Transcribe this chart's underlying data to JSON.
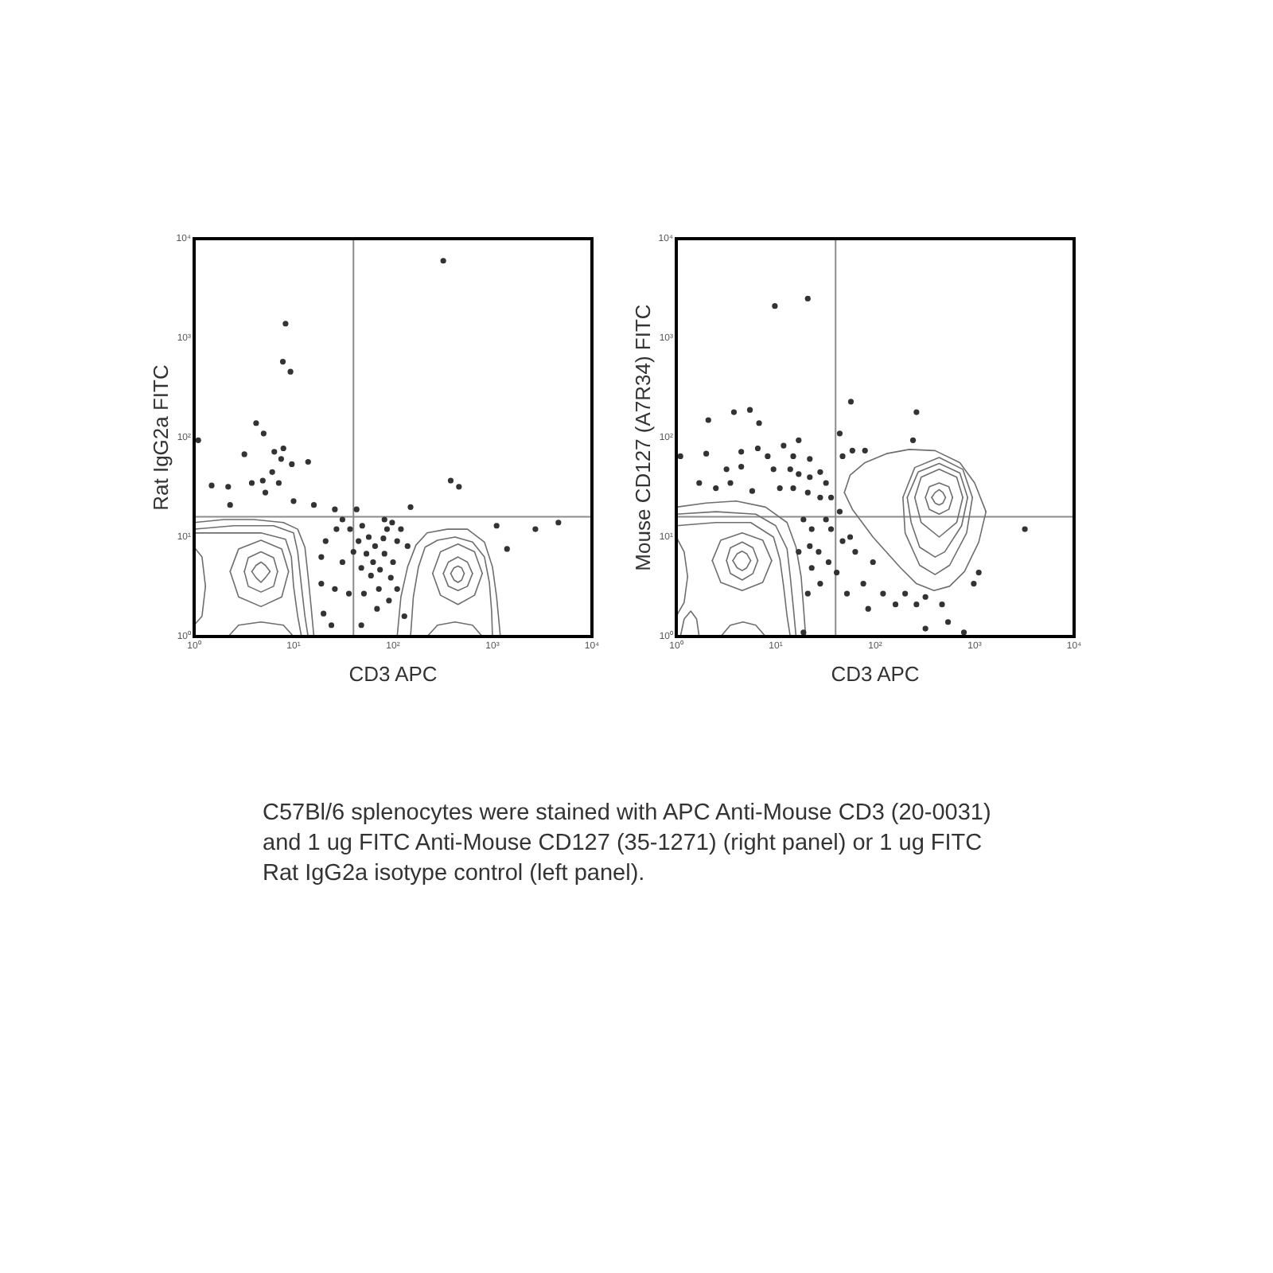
{
  "chart_data": [
    {
      "type": "scatter",
      "xlabel": "CD3 APC",
      "ylabel": "Rat IgG2a FITC",
      "log": "xy",
      "xlim": [
        1,
        10000
      ],
      "ylim": [
        1,
        10000
      ],
      "xticks": [
        {
          "value": 1,
          "label": "10⁰"
        },
        {
          "value": 10,
          "label": "10¹"
        },
        {
          "value": 100,
          "label": "10²"
        },
        {
          "value": 1000,
          "label": "10³"
        },
        {
          "value": 10000,
          "label": "10⁴"
        }
      ],
      "yticks": [
        {
          "value": 1,
          "label": "10⁰"
        },
        {
          "value": 10,
          "label": "10¹"
        },
        {
          "value": 100,
          "label": "10²"
        },
        {
          "value": 1000,
          "label": "10³"
        },
        {
          "value": 10000,
          "label": "10⁴"
        }
      ],
      "marker": "circle",
      "ref_lines": [
        {
          "axis": "x",
          "value": 40,
          "color": "#8c8c8c"
        },
        {
          "axis": "y",
          "value": 16,
          "color": "#8c8c8c"
        }
      ],
      "series": [
        {
          "type": "scatter",
          "color": "#333333",
          "x": [
            320,
            8.3,
            7.8,
            9.3,
            4.2,
            5.0,
            1.1,
            3.2,
            6.4,
            7.9,
            7.5,
            6.1,
            14,
            9.6,
            1.5,
            2.2,
            3.8,
            4.9,
            7.1,
            10,
            2.3,
            5.2,
            16,
            380,
            460,
            150,
            2700,
            4600,
            1100,
            1400,
            19,
            21,
            19,
            20,
            26,
            27,
            31,
            36,
            37,
            40,
            45,
            48,
            49,
            51,
            54,
            57,
            60,
            63,
            66,
            69,
            72,
            74,
            80,
            82,
            87,
            91,
            95,
            100,
            110,
            110,
            120,
            130,
            140,
            24,
            48,
            31,
            82,
            98,
            43,
            26
          ],
          "values": [
            6000,
            1400,
            580,
            460,
            140,
            110,
            94,
            68,
            72,
            78,
            61,
            45,
            57,
            54,
            33,
            32,
            35,
            37,
            35,
            23,
            21,
            28,
            21,
            37,
            32,
            20,
            12,
            14,
            13,
            7.6,
            6.3,
            9.1,
            3.4,
            1.7,
            3.0,
            12,
            5.6,
            2.7,
            12,
            7.1,
            9.1,
            4.9,
            13,
            2.7,
            6.8,
            10,
            4.1,
            5.6,
            8.1,
            1.9,
            3.0,
            4.7,
            9.7,
            6.8,
            12,
            2.3,
            3.9,
            5.6,
            9.1,
            3.0,
            12,
            1.6,
            8.1,
            1.3,
            1.3,
            15,
            15,
            14,
            19,
            19
          ]
        },
        {
          "type": "line",
          "color": "#6e6e6e",
          "marker": "none",
          "x": [
            1,
            2.0,
            4.0,
            7.9,
            11,
            13,
            14,
            15,
            16
          ],
          "values": [
            14,
            15,
            15,
            14,
            12,
            7.9,
            4.0,
            2.0,
            1
          ]
        },
        {
          "type": "line",
          "color": "#6e6e6e",
          "marker": "none",
          "x": [
            1,
            2.5,
            6.3,
            10,
            11,
            12,
            13,
            14
          ],
          "values": [
            12,
            13,
            13,
            11,
            7.1,
            3.2,
            1.6,
            1
          ]
        },
        {
          "type": "line",
          "color": "#6e6e6e",
          "marker": "none",
          "x": [
            1,
            2.0,
            4.7,
            8.3,
            9.5,
            10,
            11,
            12
          ],
          "values": [
            11,
            11,
            11,
            9.5,
            6.3,
            3.2,
            1.6,
            1
          ]
        },
        {
          "type": "line",
          "color": "#6e6e6e",
          "marker": "none",
          "x": [
            2.3,
            2.8,
            4.7,
            7.6,
            8.9
          ],
          "values": [
            4.5,
            7.6,
            9.3,
            7.6,
            4.5
          ]
        },
        {
          "type": "line",
          "color": "#6e6e6e",
          "marker": "none",
          "x": [
            2.3,
            2.8,
            4.7,
            7.6,
            8.9
          ],
          "values": [
            4.5,
            2.5,
            2.0,
            2.5,
            4.5
          ]
        },
        {
          "type": "line",
          "color": "#6e6e6e",
          "marker": "none",
          "x": [
            3.2,
            3.5,
            4.7,
            6.3,
            6.9
          ],
          "values": [
            4.5,
            6.2,
            7.1,
            6.2,
            4.5
          ]
        },
        {
          "type": "line",
          "color": "#6e6e6e",
          "marker": "none",
          "x": [
            3.2,
            3.5,
            4.7,
            6.3,
            6.9
          ],
          "values": [
            4.5,
            3.2,
            2.8,
            3.2,
            4.5
          ]
        },
        {
          "type": "line",
          "color": "#6e6e6e",
          "marker": "none",
          "x": [
            3.8,
            4.2,
            4.7,
            5.2,
            5.8
          ],
          "values": [
            4.5,
            5.2,
            5.6,
            5.2,
            4.5
          ]
        },
        {
          "type": "line",
          "color": "#6e6e6e",
          "marker": "none",
          "x": [
            3.8,
            4.2,
            4.7,
            5.2,
            5.8
          ],
          "values": [
            4.5,
            3.9,
            3.5,
            3.9,
            4.5
          ]
        },
        {
          "type": "line",
          "color": "#6e6e6e",
          "marker": "none",
          "x": [
            2.2,
            2.8,
            4.7,
            7.9,
            10
          ],
          "values": [
            1,
            1.3,
            1.4,
            1.3,
            1
          ]
        },
        {
          "type": "line",
          "color": "#6e6e6e",
          "marker": "none",
          "x": [
            1,
            1.2,
            1.3
          ],
          "values": [
            7.9,
            6.3,
            3.2
          ]
        },
        {
          "type": "line",
          "color": "#6e6e6e",
          "marker": "none",
          "x": [
            1,
            1.2,
            1.3
          ],
          "values": [
            1.3,
            1.6,
            3.2
          ]
        },
        {
          "type": "line",
          "color": "#6e6e6e",
          "marker": "none",
          "x": [
            110,
            120,
            140,
            170,
            220,
            350,
            560,
            830,
            1000,
            1100,
            1200
          ],
          "values": [
            1,
            2.5,
            5.0,
            8.3,
            11,
            12,
            12,
            8.9,
            5.0,
            2.5,
            1
          ]
        },
        {
          "type": "line",
          "color": "#6e6e6e",
          "marker": "none",
          "x": [
            150,
            160,
            180,
            210,
            280,
            420,
            630,
            830,
            930,
            980,
            1000
          ],
          "values": [
            1,
            2.5,
            5.0,
            7.9,
            9.3,
            10,
            8.9,
            6.3,
            3.5,
            1.8,
            1
          ]
        },
        {
          "type": "line",
          "color": "#6e6e6e",
          "marker": "none",
          "x": [
            250,
            300,
            450,
            660,
            790
          ],
          "values": [
            4.3,
            7.1,
            8.5,
            7.1,
            4.3
          ]
        },
        {
          "type": "line",
          "color": "#6e6e6e",
          "marker": "none",
          "x": [
            250,
            300,
            450,
            660,
            790
          ],
          "values": [
            4.3,
            2.6,
            2.1,
            2.6,
            4.3
          ]
        },
        {
          "type": "line",
          "color": "#6e6e6e",
          "marker": "none",
          "x": [
            320,
            360,
            450,
            560,
            630
          ],
          "values": [
            4.3,
            5.6,
            6.3,
            5.6,
            4.3
          ]
        },
        {
          "type": "line",
          "color": "#6e6e6e",
          "marker": "none",
          "x": [
            320,
            360,
            450,
            560,
            630
          ],
          "values": [
            4.3,
            3.2,
            2.9,
            3.2,
            4.3
          ]
        },
        {
          "type": "line",
          "color": "#6e6e6e",
          "marker": "none",
          "x": [
            380,
            410,
            450,
            490,
            520
          ],
          "values": [
            4.3,
            4.9,
            5.1,
            4.9,
            4.3
          ]
        },
        {
          "type": "line",
          "color": "#6e6e6e",
          "marker": "none",
          "x": [
            380,
            410,
            450,
            490,
            520
          ],
          "values": [
            4.3,
            3.7,
            3.5,
            3.7,
            4.3
          ]
        },
        {
          "type": "line",
          "color": "#6e6e6e",
          "marker": "none",
          "x": [
            220,
            280,
            420,
            630,
            790
          ],
          "values": [
            1,
            1.3,
            1.4,
            1.3,
            1
          ]
        }
      ]
    },
    {
      "type": "scatter",
      "xlabel": "CD3 APC",
      "ylabel": "Mouse CD127 (A7R34) FITC",
      "log": "xy",
      "xlim": [
        1,
        10000
      ],
      "ylim": [
        1,
        10000
      ],
      "xticks": [
        {
          "value": 1,
          "label": "10⁰"
        },
        {
          "value": 10,
          "label": "10¹"
        },
        {
          "value": 100,
          "label": "10²"
        },
        {
          "value": 1000,
          "label": "10³"
        },
        {
          "value": 10000,
          "label": "10⁴"
        }
      ],
      "yticks": [
        {
          "value": 1,
          "label": "10⁰"
        },
        {
          "value": 10,
          "label": "10¹"
        },
        {
          "value": 100,
          "label": "10²"
        },
        {
          "value": 1000,
          "label": "10³"
        },
        {
          "value": 10000,
          "label": "10⁴"
        }
      ],
      "marker": "circle",
      "ref_lines": [
        {
          "axis": "x",
          "value": 40,
          "color": "#8c8c8c"
        },
        {
          "axis": "y",
          "value": 16,
          "color": "#8c8c8c"
        }
      ],
      "annotations": [
        "C57Bl/6 splenocytes were stained with APC Anti-Mouse CD3 (20-0031) and 1 ug FITC Anti-Mouse CD127 (35-1271) (right panel) or 1 ug FITC Rat IgG2a isotype control (left panel)."
      ],
      "series": [
        {
          "type": "scatter",
          "color": "#333333",
          "x": [
            9.8,
            21,
            57,
            260,
            5.5,
            3.8,
            2.1,
            6.8,
            1.1,
            2.0,
            4.5,
            6.6,
            8.3,
            12,
            17,
            15,
            22,
            28,
            3.2,
            4.5,
            9.5,
            14,
            17,
            22,
            32,
            1.7,
            2.5,
            3.5,
            5.8,
            11,
            15,
            21,
            28,
            36,
            47,
            59,
            79,
            240,
            44,
            19,
            23,
            32,
            36,
            44,
            47,
            56,
            63,
            23,
            21,
            27,
            34,
            28,
            41,
            52,
            76,
            95,
            120,
            160,
            200,
            260,
            320,
            470,
            540,
            780,
            320,
            980,
            1100,
            3200,
            19,
            85,
            22,
            17
          ],
          "values": [
            2100,
            2500,
            230,
            180,
            190,
            180,
            150,
            140,
            65,
            69,
            72,
            78,
            65,
            83,
            94,
            65,
            61,
            45,
            48,
            51,
            48,
            48,
            43,
            40,
            35,
            35,
            31,
            35,
            29,
            31,
            31,
            28,
            25,
            25,
            65,
            74,
            74,
            94,
            110,
            15,
            12,
            15,
            12,
            18,
            9.1,
            10,
            7.1,
            4.9,
            2.7,
            7.1,
            5.6,
            3.4,
            4.4,
            2.7,
            3.4,
            5.6,
            2.7,
            2.1,
            2.7,
            2.1,
            2.5,
            2.1,
            1.4,
            1.1,
            1.2,
            3.4,
            4.4,
            12,
            1.1,
            1.9,
            8.1,
            7.1
          ]
        },
        {
          "type": "line",
          "color": "#6e6e6e",
          "marker": "none",
          "x": [
            1,
            2.0,
            4.0,
            7.9,
            13,
            16,
            18,
            19,
            20
          ],
          "values": [
            20,
            22,
            23,
            20,
            14,
            7.9,
            4.0,
            2.0,
            1
          ]
        },
        {
          "type": "line",
          "color": "#6e6e6e",
          "marker": "none",
          "x": [
            1,
            2.5,
            6.3,
            10,
            13,
            14,
            15,
            16
          ],
          "values": [
            17,
            18,
            17,
            13,
            7.6,
            4.0,
            2.0,
            1
          ]
        },
        {
          "type": "line",
          "color": "#6e6e6e",
          "marker": "none",
          "x": [
            1,
            2.5,
            5.6,
            9.5,
            11,
            12,
            13,
            14
          ],
          "values": [
            13,
            14,
            14,
            10,
            6.0,
            3.2,
            1.6,
            1
          ]
        },
        {
          "type": "line",
          "color": "#6e6e6e",
          "marker": "none",
          "x": [
            2.3,
            2.8,
            4.6,
            7.4,
            9.1
          ],
          "values": [
            5.8,
            9.3,
            11,
            9.3,
            5.8
          ]
        },
        {
          "type": "line",
          "color": "#6e6e6e",
          "marker": "none",
          "x": [
            2.3,
            2.8,
            4.6,
            7.4,
            9.1
          ],
          "values": [
            5.8,
            3.5,
            2.9,
            3.5,
            5.8
          ]
        },
        {
          "type": "line",
          "color": "#6e6e6e",
          "marker": "none",
          "x": [
            3.2,
            3.5,
            4.6,
            5.9,
            6.6
          ],
          "values": [
            5.8,
            7.8,
            8.9,
            7.8,
            5.8
          ]
        },
        {
          "type": "line",
          "color": "#6e6e6e",
          "marker": "none",
          "x": [
            3.2,
            3.5,
            4.6,
            5.9,
            6.6
          ],
          "values": [
            5.8,
            4.3,
            3.7,
            4.3,
            5.8
          ]
        },
        {
          "type": "line",
          "color": "#6e6e6e",
          "marker": "none",
          "x": [
            3.7,
            4.1,
            4.6,
            5.1,
            5.6
          ],
          "values": [
            5.8,
            6.8,
            7.2,
            6.8,
            5.8
          ]
        },
        {
          "type": "line",
          "color": "#6e6e6e",
          "marker": "none",
          "x": [
            3.7,
            4.1,
            4.6,
            5.1,
            5.6
          ],
          "values": [
            5.8,
            4.9,
            4.6,
            4.9,
            5.8
          ]
        },
        {
          "type": "line",
          "color": "#6e6e6e",
          "marker": "none",
          "x": [
            2.8,
            3.5,
            4.7,
            6.3,
            7.9
          ],
          "values": [
            1,
            1.3,
            1.4,
            1.3,
            1
          ]
        },
        {
          "type": "line",
          "color": "#6e6e6e",
          "marker": "none",
          "x": [
            1,
            1.2,
            1.3
          ],
          "values": [
            10,
            7.1,
            4.0
          ]
        },
        {
          "type": "line",
          "color": "#6e6e6e",
          "marker": "none",
          "x": [
            1,
            1.2,
            1.3
          ],
          "values": [
            1.6,
            2.2,
            4.0
          ]
        },
        {
          "type": "line",
          "color": "#6e6e6e",
          "marker": "none",
          "x": [
            1.1,
            1.2,
            1.4,
            1.6,
            1.7
          ],
          "values": [
            1,
            1.5,
            1.8,
            1.5,
            1
          ]
        },
        {
          "type": "line",
          "color": "#6e6e6e",
          "marker": "none",
          "x": [
            49,
            56,
            79,
            130,
            220,
            400,
            710,
            1000,
            1300
          ],
          "values": [
            28,
            42,
            56,
            69,
            76,
            74,
            56,
            35,
            18
          ]
        },
        {
          "type": "line",
          "color": "#6e6e6e",
          "marker": "none",
          "x": [
            49,
            59,
            95,
            180,
            260,
            390,
            560,
            790,
            1100,
            1300
          ],
          "values": [
            28,
            19,
            10,
            4.9,
            3.4,
            2.9,
            3.2,
            4.5,
            8.9,
            18
          ]
        },
        {
          "type": "line",
          "color": "#6e6e6e",
          "marker": "none",
          "x": [
            190,
            250,
            440,
            760,
            950
          ],
          "values": [
            25,
            50,
            63,
            48,
            25
          ]
        },
        {
          "type": "line",
          "color": "#6e6e6e",
          "marker": "none",
          "x": [
            190,
            200,
            280,
            400,
            560,
            830,
            950
          ],
          "values": [
            25,
            11,
            5.2,
            4.2,
            5.2,
            11,
            25
          ]
        },
        {
          "type": "line",
          "color": "#6e6e6e",
          "marker": "none",
          "x": [
            210,
            270,
            440,
            710,
            850
          ],
          "values": [
            25,
            45,
            55,
            44,
            25
          ]
        },
        {
          "type": "line",
          "color": "#6e6e6e",
          "marker": "none",
          "x": [
            210,
            230,
            280,
            400,
            500,
            740,
            850
          ],
          "values": [
            25,
            14,
            7.9,
            6.3,
            7.1,
            13,
            25
          ]
        },
        {
          "type": "line",
          "color": "#6e6e6e",
          "marker": "none",
          "x": [
            250,
            290,
            440,
            660,
            760
          ],
          "values": [
            25,
            40,
            48,
            40,
            25
          ]
        },
        {
          "type": "line",
          "color": "#6e6e6e",
          "marker": "none",
          "x": [
            250,
            290,
            440,
            660,
            760
          ],
          "values": [
            25,
            14,
            10,
            14,
            25
          ]
        },
        {
          "type": "line",
          "color": "#6e6e6e",
          "marker": "none",
          "x": [
            320,
            350,
            440,
            550,
            600
          ],
          "values": [
            25,
            32,
            35,
            32,
            25
          ]
        },
        {
          "type": "line",
          "color": "#6e6e6e",
          "marker": "none",
          "x": [
            320,
            350,
            440,
            550,
            600
          ],
          "values": [
            25,
            19,
            17,
            19,
            25
          ]
        },
        {
          "type": "line",
          "color": "#6e6e6e",
          "marker": "none",
          "x": [
            370,
            400,
            440,
            480,
            510
          ],
          "values": [
            25,
            28,
            30,
            28,
            25
          ]
        },
        {
          "type": "line",
          "color": "#6e6e6e",
          "marker": "none",
          "x": [
            370,
            400,
            440,
            480,
            510
          ],
          "values": [
            25,
            22,
            21,
            22,
            25
          ]
        }
      ]
    }
  ]
}
